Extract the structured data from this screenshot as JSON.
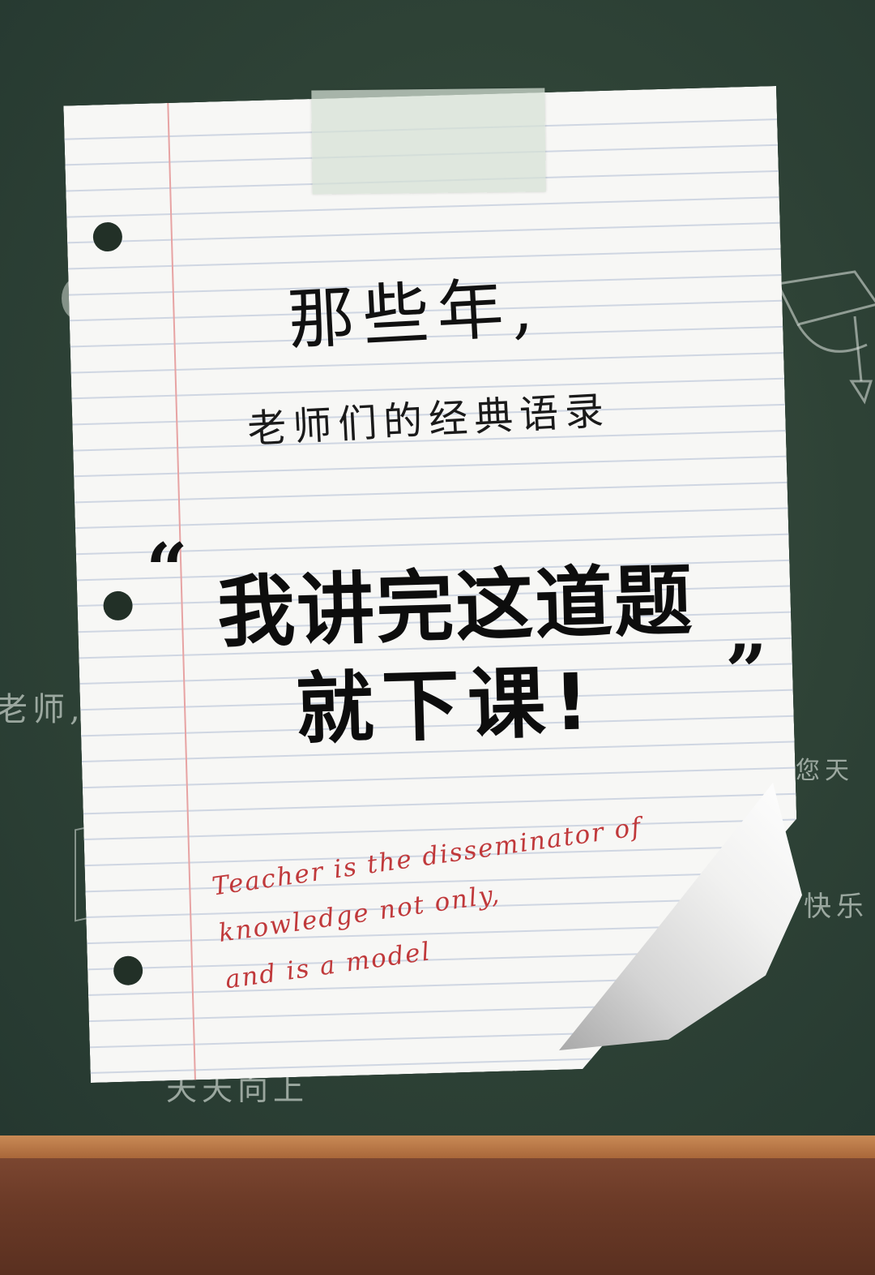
{
  "background": {
    "board_color": "#2e4236",
    "ledge_color": "#6b3a27",
    "chalk_texts": {
      "left": "老师,",
      "right_top": "您天",
      "right_bottom": "快乐",
      "bottom": "天天向上"
    }
  },
  "note": {
    "title": "那些年,",
    "subtitle": "老师们的经典语录",
    "quote_open": "“",
    "quote_line1": "我讲完这道题",
    "quote_line2": "就下课!",
    "quote_close": "”",
    "english_lines": [
      "Teacher is the disseminator of",
      "knowledge not only,",
      "and is a model"
    ],
    "ink_color": "#c0393b"
  }
}
